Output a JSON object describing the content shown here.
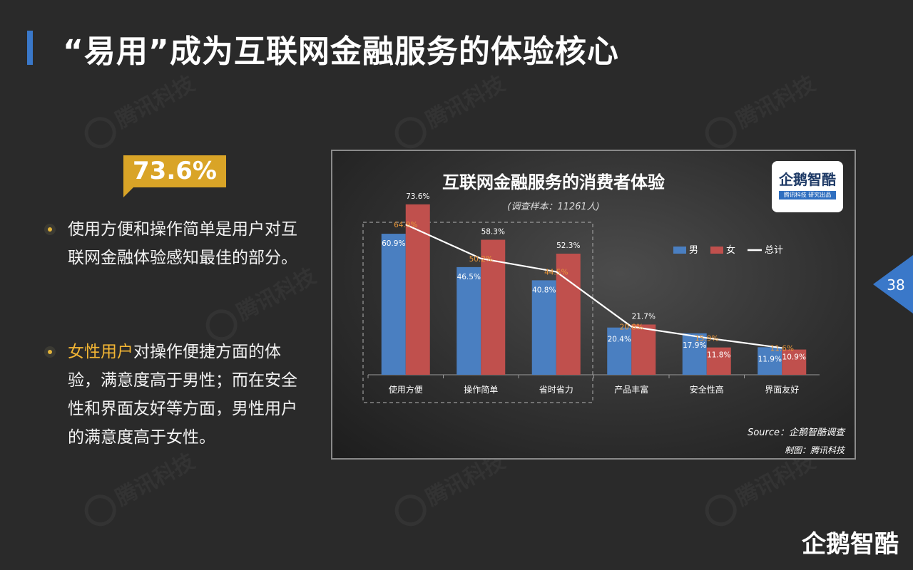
{
  "header": {
    "title": "“易用”成为互联网金融服务的体验核心"
  },
  "watermark": "腾讯科技",
  "highlight": {
    "value": "73.6%"
  },
  "bullets": [
    {
      "text": "使用方便和操作简单是用户对互联网金融体验感知最佳的部分。"
    },
    {
      "highlight": "女性用户",
      "text": "对操作便捷方面的体验，满意度高于男性；而在安全性和界面友好等方面，男性用户的满意度高于女性。"
    }
  ],
  "chart_logo": {
    "name": "企鹅智酷",
    "sub": "腾讯科技 研究出品"
  },
  "page_number": "38",
  "brand": "企鹅智酷",
  "chart_data": {
    "type": "bar",
    "title": "互联网金融服务的消费者体验",
    "subtitle": "(调查样本：11261人)",
    "categories": [
      "使用方便",
      "操作简单",
      "省时省力",
      "产品丰富",
      "安全性高",
      "界面友好"
    ],
    "series": [
      {
        "name": "男",
        "type": "bar",
        "color": "#4a7fc1",
        "values": [
          60.9,
          46.5,
          40.8,
          20.4,
          17.9,
          11.9
        ]
      },
      {
        "name": "女",
        "type": "bar",
        "color": "#c0504d",
        "values": [
          73.6,
          58.3,
          52.3,
          21.7,
          11.8,
          10.9
        ]
      },
      {
        "name": "总计",
        "type": "line",
        "color": "#ffffff",
        "values": [
          64.9,
          50.2,
          44.5,
          20.8,
          15.9,
          11.6
        ]
      }
    ],
    "ylim": [
      0,
      80
    ],
    "grid": false,
    "legend": "top-right",
    "label_colors": {
      "男": "#ffffff",
      "女": "#ffffff",
      "总计": "#e8963a"
    },
    "source": "Source：企鹅智酷调查",
    "credit": "制图：腾讯科技"
  },
  "colors": {
    "accent": "#3a78c9",
    "gold": "#d9a427",
    "highlight_text": "#f2b534"
  }
}
